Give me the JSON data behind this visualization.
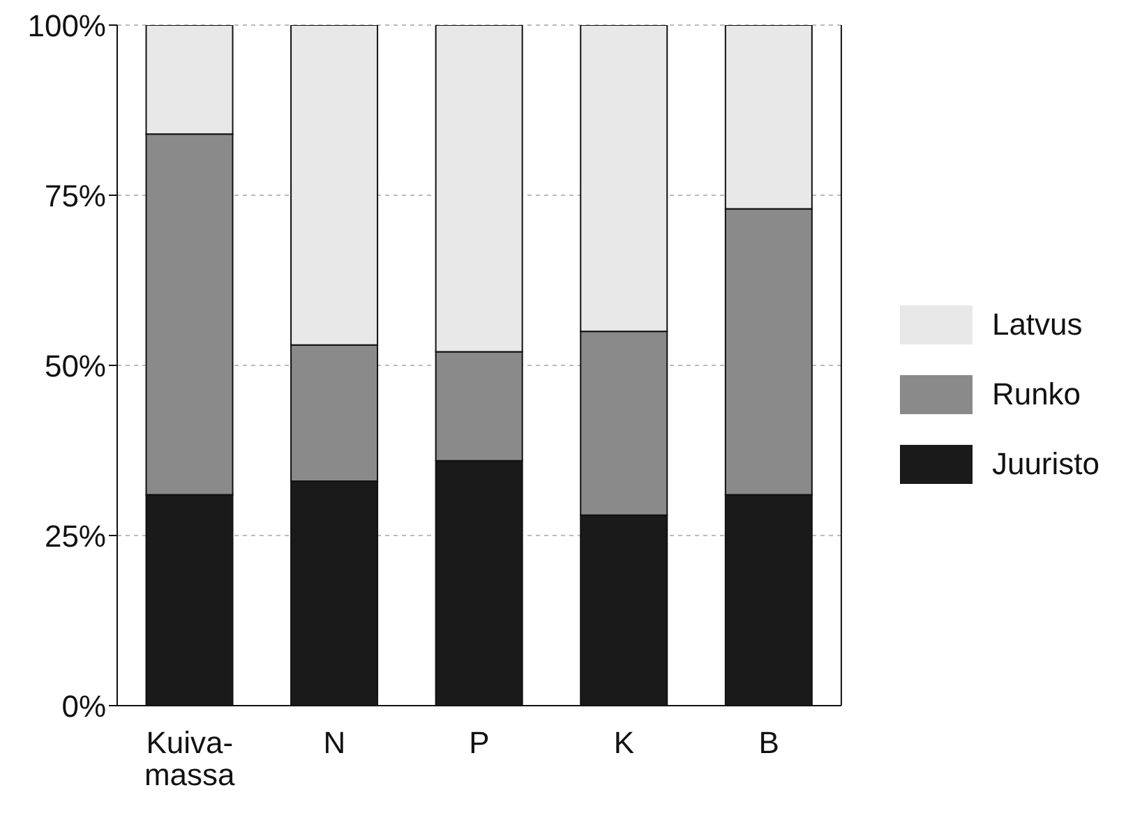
{
  "chart_data": {
    "type": "bar",
    "stacked": true,
    "categories": [
      "Kuiva-\nmassa",
      "N",
      "P",
      "K",
      "B"
    ],
    "series": [
      {
        "name": "Juuristo",
        "color": "#1a1a1a",
        "values": [
          31,
          33,
          36,
          28,
          31
        ]
      },
      {
        "name": "Runko",
        "color": "#8a8a8a",
        "values": [
          53,
          20,
          16,
          27,
          42
        ]
      },
      {
        "name": "Latvus",
        "color": "#e8e8e8",
        "values": [
          16,
          47,
          48,
          45,
          27
        ]
      }
    ],
    "ylim": [
      0,
      100
    ],
    "yticks": [
      {
        "value": 0,
        "label": "0%"
      },
      {
        "value": 25,
        "label": "25%"
      },
      {
        "value": 50,
        "label": "50%"
      },
      {
        "value": 75,
        "label": "75%"
      },
      {
        "value": 100,
        "label": "100%"
      }
    ],
    "grid": "y",
    "legend": "right"
  }
}
